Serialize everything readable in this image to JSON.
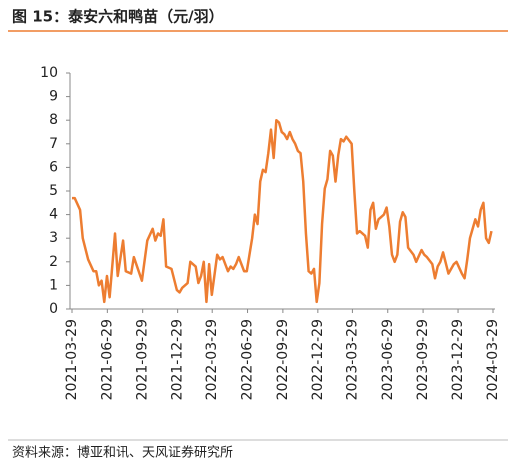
{
  "chart_data": {
    "type": "line",
    "title": "图 15：泰安六和鸭苗（元/羽）",
    "source": "资料来源：博亚和讯、天风证券研究所",
    "x": [
      "2021-03-29",
      "2021-04-05",
      "2021-04-19",
      "2021-04-26",
      "2021-05-10",
      "2021-05-24",
      "2021-05-31",
      "2021-06-07",
      "2021-06-14",
      "2021-06-21",
      "2021-06-28",
      "2021-07-05",
      "2021-07-19",
      "2021-07-26",
      "2021-08-09",
      "2021-08-16",
      "2021-08-30",
      "2021-09-06",
      "2021-09-27",
      "2021-10-11",
      "2021-10-25",
      "2021-11-01",
      "2021-11-08",
      "2021-11-15",
      "2021-11-22",
      "2021-11-29",
      "2021-12-13",
      "2021-12-27",
      "2022-01-03",
      "2022-01-10",
      "2022-01-24",
      "2022-01-31",
      "2022-02-14",
      "2022-02-21",
      "2022-02-28",
      "2022-03-07",
      "2022-03-14",
      "2022-03-21",
      "2022-03-28",
      "2022-04-11",
      "2022-04-18",
      "2022-04-25",
      "2022-05-09",
      "2022-05-16",
      "2022-05-23",
      "2022-05-30",
      "2022-06-06",
      "2022-06-20",
      "2022-06-27",
      "2022-07-11",
      "2022-07-18",
      "2022-07-25",
      "2022-08-01",
      "2022-08-08",
      "2022-08-15",
      "2022-08-22",
      "2022-08-29",
      "2022-09-05",
      "2022-09-12",
      "2022-09-19",
      "2022-09-26",
      "2022-10-03",
      "2022-10-10",
      "2022-10-17",
      "2022-10-24",
      "2022-10-31",
      "2022-11-07",
      "2022-11-14",
      "2022-11-21",
      "2022-11-28",
      "2022-12-05",
      "2022-12-12",
      "2022-12-19",
      "2022-12-26",
      "2023-01-02",
      "2023-01-09",
      "2023-01-16",
      "2023-01-23",
      "2023-01-30",
      "2023-02-06",
      "2023-02-13",
      "2023-02-20",
      "2023-02-27",
      "2023-03-06",
      "2023-03-13",
      "2023-03-27",
      "2023-04-03",
      "2023-04-10",
      "2023-04-17",
      "2023-05-01",
      "2023-05-08",
      "2023-05-15",
      "2023-05-22",
      "2023-05-29",
      "2023-06-05",
      "2023-06-19",
      "2023-06-26",
      "2023-07-03",
      "2023-07-10",
      "2023-07-17",
      "2023-07-24",
      "2023-07-31",
      "2023-08-07",
      "2023-08-14",
      "2023-08-21",
      "2023-09-04",
      "2023-09-11",
      "2023-09-25",
      "2023-10-02",
      "2023-10-09",
      "2023-10-23",
      "2023-10-30",
      "2023-11-06",
      "2023-11-13",
      "2023-11-20",
      "2023-12-04",
      "2023-12-11",
      "2023-12-18",
      "2023-12-25",
      "2024-01-08",
      "2024-01-15",
      "2024-01-22",
      "2024-01-29",
      "2024-02-05",
      "2024-02-12",
      "2024-02-19",
      "2024-02-26",
      "2024-03-04",
      "2024-03-11",
      "2024-03-18",
      "2024-03-25"
    ],
    "series": [
      {
        "color": "#ed7d31",
        "values": [
          4.7,
          4.7,
          4.2,
          3.0,
          2.1,
          1.6,
          1.6,
          1.0,
          1.2,
          0.3,
          1.4,
          0.5,
          3.2,
          1.4,
          2.9,
          1.6,
          1.5,
          2.2,
          1.2,
          2.9,
          3.4,
          2.9,
          3.2,
          3.1,
          3.8,
          1.8,
          1.7,
          0.8,
          0.7,
          0.9,
          1.1,
          2.0,
          1.8,
          1.1,
          1.4,
          2.0,
          0.3,
          1.9,
          0.6,
          2.3,
          2.1,
          2.2,
          1.6,
          1.8,
          1.7,
          1.9,
          2.2,
          1.6,
          1.6,
          3.0,
          4.0,
          3.6,
          5.4,
          5.9,
          5.8,
          6.6,
          7.6,
          6.4,
          8.0,
          7.9,
          7.5,
          7.4,
          7.2,
          7.5,
          7.2,
          7.0,
          6.7,
          6.6,
          5.4,
          3.2,
          1.6,
          1.5,
          1.7,
          0.3,
          1.1,
          3.6,
          5.1,
          5.5,
          6.7,
          6.5,
          5.4,
          6.5,
          7.2,
          7.1,
          7.3,
          7.0,
          5.0,
          3.2,
          3.3,
          3.1,
          2.6,
          4.2,
          4.5,
          3.4,
          3.8,
          4.0,
          4.3,
          3.5,
          2.3,
          2.0,
          2.3,
          3.7,
          4.1,
          3.9,
          2.6,
          2.3,
          2.0,
          2.5,
          2.3,
          2.2,
          1.9,
          1.3,
          1.8,
          2.0,
          2.4,
          1.5,
          1.7,
          1.9,
          2.0,
          1.5,
          1.3,
          2.1,
          3.0,
          3.4,
          3.8,
          3.5,
          4.2,
          4.5,
          3.0,
          2.8,
          3.3
        ]
      }
    ],
    "xlim": [
      "2021-03-29",
      "2024-03-29"
    ],
    "xticks": [
      "2021-03-29",
      "2021-06-29",
      "2021-09-29",
      "2021-12-29",
      "2022-03-29",
      "2022-06-29",
      "2022-09-29",
      "2022-12-29",
      "2023-03-29",
      "2023-06-29",
      "2023-09-29",
      "2023-12-29",
      "2024-03-29"
    ],
    "ylim": [
      0,
      10
    ],
    "yticks": [
      0,
      1,
      2,
      3,
      4,
      5,
      6,
      7,
      8,
      9,
      10
    ]
  }
}
